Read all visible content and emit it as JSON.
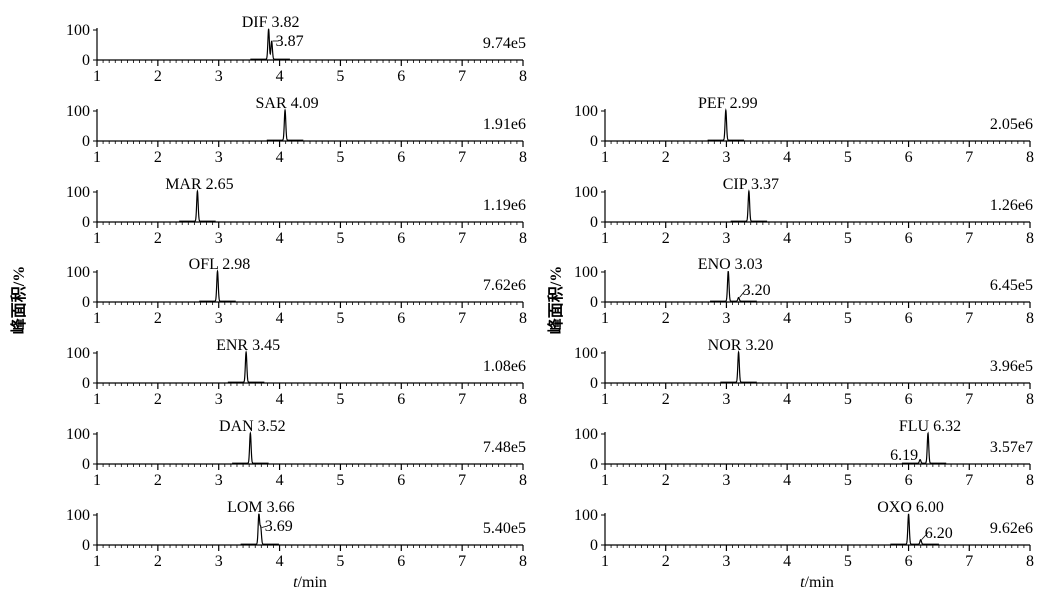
{
  "chart_data": {
    "type": "line",
    "panels": [
      {
        "col": 0,
        "row": 0,
        "intensity": "9.74e5",
        "peaks": [
          {
            "rt": 3.82,
            "height": 100,
            "label": "DIF 3.82"
          },
          {
            "rt": 3.87,
            "height": 60,
            "label": "3.87"
          }
        ]
      },
      {
        "col": 0,
        "row": 1,
        "intensity": "1.91e6",
        "peaks": [
          {
            "rt": 4.09,
            "height": 100,
            "label": "SAR 4.09"
          }
        ]
      },
      {
        "col": 0,
        "row": 2,
        "intensity": "1.19e6",
        "peaks": [
          {
            "rt": 2.65,
            "height": 100,
            "label": "MAR 2.65"
          }
        ]
      },
      {
        "col": 0,
        "row": 3,
        "intensity": "7.62e6",
        "peaks": [
          {
            "rt": 2.98,
            "height": 100,
            "label": "OFL 2.98"
          }
        ]
      },
      {
        "col": 0,
        "row": 4,
        "intensity": "1.08e6",
        "peaks": [
          {
            "rt": 3.45,
            "height": 100,
            "label": "ENR 3.45"
          }
        ]
      },
      {
        "col": 0,
        "row": 5,
        "intensity": "7.48e5",
        "peaks": [
          {
            "rt": 3.52,
            "height": 100,
            "label": "DAN 3.52"
          }
        ]
      },
      {
        "col": 0,
        "row": 6,
        "intensity": "5.40e5",
        "peaks": [
          {
            "rt": 3.66,
            "height": 100,
            "label": "LOM 3.66"
          },
          {
            "rt": 3.69,
            "height": 55,
            "label": "3.69"
          }
        ]
      },
      {
        "col": 1,
        "row": 1,
        "intensity": "2.05e6",
        "peaks": [
          {
            "rt": 2.99,
            "height": 100,
            "label": "PEF 2.99"
          }
        ]
      },
      {
        "col": 1,
        "row": 2,
        "intensity": "1.26e6",
        "peaks": [
          {
            "rt": 3.37,
            "height": 100,
            "label": "CIP 3.37"
          }
        ]
      },
      {
        "col": 1,
        "row": 3,
        "intensity": "6.45e5",
        "peaks": [
          {
            "rt": 3.03,
            "height": 100,
            "label": "ENO 3.03"
          },
          {
            "rt": 3.2,
            "height": 12,
            "label": "3.20"
          }
        ]
      },
      {
        "col": 1,
        "row": 4,
        "intensity": "3.96e5",
        "peaks": [
          {
            "rt": 3.2,
            "height": 100,
            "label": "NOR 3.20"
          }
        ]
      },
      {
        "col": 1,
        "row": 5,
        "intensity": "3.57e7",
        "peaks": [
          {
            "rt": 6.32,
            "height": 100,
            "label": "FLU 6.32"
          },
          {
            "rt": 6.19,
            "height": 12,
            "label": "6.19"
          }
        ]
      },
      {
        "col": 1,
        "row": 6,
        "intensity": "9.62e6",
        "peaks": [
          {
            "rt": 6.0,
            "height": 100,
            "label": "OXO 6.00"
          },
          {
            "rt": 6.2,
            "height": 15,
            "label": "6.20"
          }
        ]
      }
    ],
    "xlim": [
      1,
      8
    ],
    "ylim": [
      0,
      100
    ],
    "x_ticks": [
      "1",
      "2",
      "3",
      "4",
      "5",
      "6",
      "7",
      "8"
    ],
    "y_ticks": [
      "0",
      "100"
    ],
    "ylabel": "峰面积/%",
    "xlabel_italic": "t",
    "xlabel_rest": "/min",
    "color": "#000000"
  }
}
